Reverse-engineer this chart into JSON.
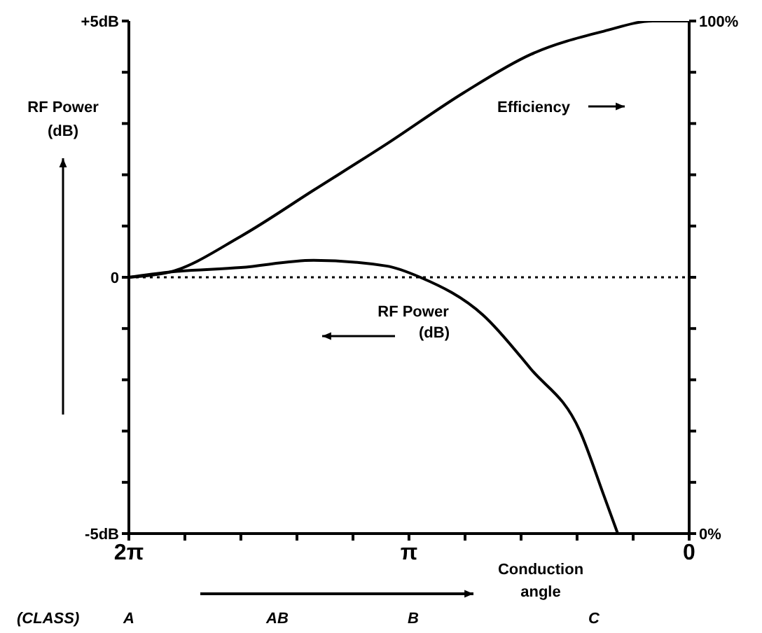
{
  "chart_data": {
    "type": "line",
    "xlabel": "Conduction angle",
    "ylabel": "RF Power (dB)",
    "xlim": [
      6.283,
      0
    ],
    "xticks": [
      {
        "value": 6.283,
        "label": "2π"
      },
      {
        "value": 5.655,
        "label": null
      },
      {
        "value": 5.027,
        "label": null
      },
      {
        "value": 4.398,
        "label": null
      },
      {
        "value": 3.77,
        "label": null
      },
      {
        "value": 3.142,
        "label": "π"
      },
      {
        "value": 2.513,
        "label": null
      },
      {
        "value": 1.885,
        "label": null
      },
      {
        "value": 1.257,
        "label": null
      },
      {
        "value": 0.628,
        "label": null
      },
      {
        "value": 0,
        "label": "0"
      }
    ],
    "ylim": [
      -5,
      5
    ],
    "yticks": [
      {
        "value": -5,
        "label": "-5dB"
      },
      {
        "value": -4,
        "label": null
      },
      {
        "value": -3,
        "label": null
      },
      {
        "value": -2,
        "label": null
      },
      {
        "value": -1,
        "label": null
      },
      {
        "value": 0,
        "label": "0"
      },
      {
        "value": 1,
        "label": null
      },
      {
        "value": 2,
        "label": null
      },
      {
        "value": 3,
        "label": null
      },
      {
        "value": 4,
        "label": null
      },
      {
        "value": 5,
        "label": "+5dB"
      }
    ],
    "y2lim": [
      0,
      100
    ],
    "y2ticks": [
      {
        "value": 0,
        "label": "0%"
      },
      {
        "value": 10,
        "label": null
      },
      {
        "value": 20,
        "label": null
      },
      {
        "value": 30,
        "label": null
      },
      {
        "value": 40,
        "label": null
      },
      {
        "value": 50,
        "label": null
      },
      {
        "value": 60,
        "label": null
      },
      {
        "value": 70,
        "label": null
      },
      {
        "value": 80,
        "label": null
      },
      {
        "value": 90,
        "label": null
      },
      {
        "value": 100,
        "label": "100%"
      }
    ],
    "series": [
      {
        "name": "Efficiency",
        "color": "#000000",
        "axis": "y2",
        "x": [
          6.283,
          5.828,
          5.027,
          4.21,
          3.393,
          2.529,
          1.775,
          0.958,
          0.408,
          0
        ],
        "values": [
          50,
          51,
          58,
          67,
          76,
          86,
          93.5,
          98,
          100,
          100
        ]
      },
      {
        "name": "RF Power (dB)",
        "color": "#000000",
        "x": [
          6.283,
          5.843,
          5.027,
          4.21,
          3.393,
          3.016,
          2.309,
          1.775,
          1.225,
          0.958,
          0.801
        ],
        "values": [
          0,
          0.1,
          0.19,
          0.33,
          0.22,
          0,
          -0.74,
          -1.79,
          -3.0,
          -4.25,
          -5
        ]
      }
    ],
    "ref_lines": [
      {
        "axis": "y",
        "value": 0,
        "line_style": "dotted",
        "color": "#000000"
      }
    ],
    "annotations": [
      "(CLASS)",
      "A",
      "AB",
      "B",
      "C"
    ],
    "grid": false,
    "legend": "top right",
    "marker": "none",
    "line_style": "solid"
  }
}
